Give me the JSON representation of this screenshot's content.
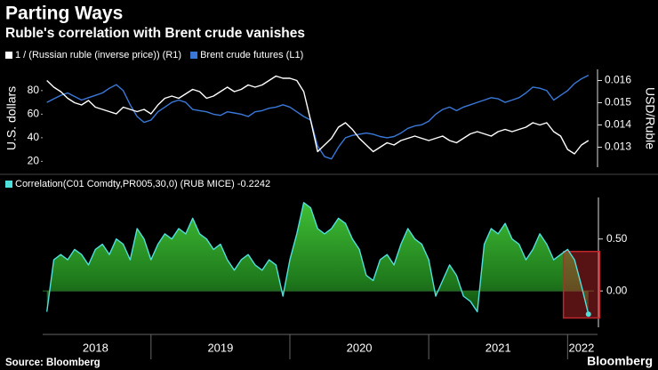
{
  "title": "Parting Ways",
  "subtitle": "Ruble's correlation with Brent crude vanishes",
  "source": "Source: Bloomberg",
  "brand": "Bloomberg",
  "chart_data": [
    {
      "type": "line",
      "ylabel": "U.S. dollars",
      "y2label": "USD/Ruble",
      "x": [
        2018.25,
        2018.3,
        2018.35,
        2018.4,
        2018.45,
        2018.5,
        2018.55,
        2018.6,
        2018.65,
        2018.7,
        2018.75,
        2018.8,
        2018.85,
        2018.9,
        2018.95,
        2019,
        2019.05,
        2019.1,
        2019.15,
        2019.2,
        2019.25,
        2019.3,
        2019.35,
        2019.4,
        2019.45,
        2019.5,
        2019.55,
        2019.6,
        2019.65,
        2019.7,
        2019.75,
        2019.8,
        2019.85,
        2019.9,
        2019.95,
        2020,
        2020.05,
        2020.1,
        2020.15,
        2020.2,
        2020.25,
        2020.3,
        2020.35,
        2020.4,
        2020.45,
        2020.5,
        2020.55,
        2020.6,
        2020.65,
        2020.7,
        2020.75,
        2020.8,
        2020.85,
        2020.9,
        2020.95,
        2021,
        2021.05,
        2021.1,
        2021.15,
        2021.2,
        2021.25,
        2021.3,
        2021.35,
        2021.4,
        2021.45,
        2021.5,
        2021.55,
        2021.6,
        2021.65,
        2021.7,
        2021.75,
        2021.8,
        2021.85,
        2021.9,
        2021.95,
        2022,
        2022.05,
        2022.1,
        2022.15
      ],
      "xlim": [
        2018.22,
        2022.19
      ],
      "ylim": [
        15,
        98
      ],
      "yticks": [
        20,
        40,
        60,
        80
      ],
      "y2lim": [
        0.0121,
        0.0165
      ],
      "y2ticks": [
        0.013,
        0.014,
        0.015,
        0.016
      ],
      "series": [
        {
          "name": "1 / (Russian ruble (inverse price)) (R1)",
          "color": "#ffffff",
          "axis": "y2",
          "values": [
            0.016,
            0.0157,
            0.0155,
            0.0152,
            0.015,
            0.0149,
            0.0151,
            0.0148,
            0.0147,
            0.0146,
            0.0145,
            0.0148,
            0.0147,
            0.0146,
            0.0147,
            0.0145,
            0.0149,
            0.0152,
            0.0153,
            0.0152,
            0.0154,
            0.0156,
            0.0155,
            0.0152,
            0.0153,
            0.0155,
            0.0157,
            0.0155,
            0.0156,
            0.0158,
            0.0157,
            0.0158,
            0.016,
            0.0162,
            0.0161,
            0.0161,
            0.016,
            0.0155,
            0.0142,
            0.0128,
            0.0131,
            0.0134,
            0.0139,
            0.0141,
            0.0138,
            0.0134,
            0.0131,
            0.0128,
            0.013,
            0.0132,
            0.0131,
            0.0133,
            0.0134,
            0.0135,
            0.0134,
            0.0133,
            0.0134,
            0.0135,
            0.0133,
            0.0132,
            0.0134,
            0.0136,
            0.0137,
            0.0136,
            0.0135,
            0.0137,
            0.0138,
            0.0137,
            0.0138,
            0.0139,
            0.0141,
            0.014,
            0.0141,
            0.0137,
            0.0135,
            0.0129,
            0.0127,
            0.0131,
            0.0133
          ]
        },
        {
          "name": "Brent crude futures (L1)",
          "color": "#3a78d8",
          "values": [
            70,
            73,
            76,
            78,
            75,
            72,
            74,
            76,
            78,
            82,
            85,
            80,
            68,
            58,
            53,
            55,
            62,
            66,
            70,
            72,
            70,
            64,
            63,
            62,
            60,
            59,
            62,
            61,
            60,
            58,
            62,
            63,
            65,
            66,
            68,
            66,
            62,
            58,
            55,
            33,
            24,
            22,
            32,
            40,
            42,
            43,
            44,
            43,
            41,
            40,
            41,
            44,
            48,
            50,
            51,
            54,
            60,
            64,
            66,
            63,
            66,
            68,
            70,
            72,
            74,
            73,
            70,
            72,
            74,
            78,
            83,
            82,
            80,
            72,
            76,
            80,
            86,
            90,
            93
          ]
        }
      ]
    },
    {
      "type": "area",
      "x": [
        2018.25,
        2018.3,
        2018.35,
        2018.4,
        2018.45,
        2018.5,
        2018.55,
        2018.6,
        2018.65,
        2018.7,
        2018.75,
        2018.8,
        2018.85,
        2018.9,
        2018.95,
        2019,
        2019.05,
        2019.1,
        2019.15,
        2019.2,
        2019.25,
        2019.3,
        2019.35,
        2019.4,
        2019.45,
        2019.5,
        2019.55,
        2019.6,
        2019.65,
        2019.7,
        2019.75,
        2019.8,
        2019.85,
        2019.9,
        2019.95,
        2020,
        2020.05,
        2020.1,
        2020.15,
        2020.2,
        2020.25,
        2020.3,
        2020.35,
        2020.4,
        2020.45,
        2020.5,
        2020.55,
        2020.6,
        2020.65,
        2020.7,
        2020.75,
        2020.8,
        2020.85,
        2020.9,
        2020.95,
        2021,
        2021.05,
        2021.1,
        2021.15,
        2021.2,
        2021.25,
        2021.3,
        2021.35,
        2021.4,
        2021.45,
        2021.5,
        2021.55,
        2021.6,
        2021.65,
        2021.7,
        2021.75,
        2021.8,
        2021.85,
        2021.9,
        2021.95,
        2022,
        2022.05,
        2022.1,
        2022.15
      ],
      "xlim": [
        2018.22,
        2022.19
      ],
      "xticks": [
        {
          "value": 2018.6,
          "label": "2018"
        },
        {
          "value": 2019.5,
          "label": "2019"
        },
        {
          "value": 2020.5,
          "label": "2020"
        },
        {
          "value": 2021.5,
          "label": "2021"
        },
        {
          "value": 2022.1,
          "label": "2022"
        }
      ],
      "x_dividers": [
        2019,
        2020,
        2021,
        2022
      ],
      "ylim": [
        -0.35,
        0.9
      ],
      "yticks": [
        {
          "value": 0.5,
          "label": "0.50"
        },
        {
          "value": 0,
          "label": "0.00"
        }
      ],
      "series": [
        {
          "name": "Correlation(C01 Comdty,PR005,30,0) (RUB MICE) -0.2242",
          "color": "#4fe0dc",
          "fill": "#2e9a2a",
          "values": [
            -0.2,
            0.3,
            0.35,
            0.3,
            0.4,
            0.35,
            0.25,
            0.4,
            0.45,
            0.35,
            0.5,
            0.45,
            0.3,
            0.6,
            0.5,
            0.3,
            0.45,
            0.55,
            0.5,
            0.6,
            0.55,
            0.7,
            0.55,
            0.5,
            0.4,
            0.45,
            0.3,
            0.2,
            0.3,
            0.35,
            0.25,
            0.2,
            0.3,
            0.25,
            -0.05,
            0.3,
            0.55,
            0.85,
            0.8,
            0.6,
            0.55,
            0.6,
            0.7,
            0.65,
            0.5,
            0.4,
            0.15,
            0.1,
            0.3,
            0.35,
            0.25,
            0.45,
            0.6,
            0.5,
            0.45,
            0.3,
            -0.05,
            0.1,
            0.25,
            0.15,
            -0.05,
            -0.1,
            -0.2,
            0.45,
            0.6,
            0.55,
            0.65,
            0.5,
            0.45,
            0.3,
            0.4,
            0.55,
            0.45,
            0.3,
            0.35,
            0.4,
            0.3,
            0.05,
            -0.2242
          ]
        }
      ],
      "highlight": {
        "xlim": [
          2021.97,
          2022.23
        ],
        "ylim": [
          -0.26,
          0.38
        ],
        "color": "#c0272d"
      }
    }
  ]
}
